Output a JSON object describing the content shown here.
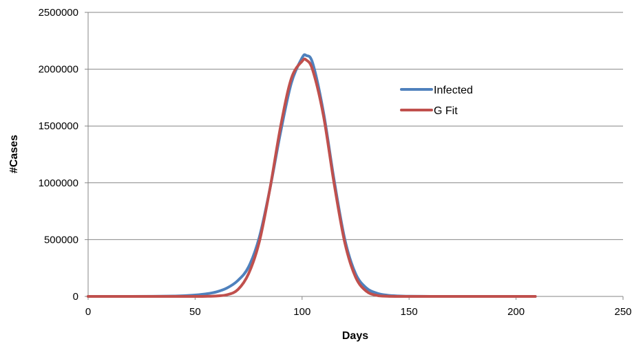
{
  "chart_data": {
    "type": "line",
    "title": "",
    "xlabel": "Days",
    "ylabel": "#Cases",
    "xlim": [
      0,
      250
    ],
    "ylim": [
      0,
      2500000
    ],
    "x_ticks": [
      0,
      50,
      100,
      150,
      200,
      250
    ],
    "y_ticks": [
      0,
      500000,
      1000000,
      1500000,
      2000000,
      2500000
    ],
    "x_tick_labels": [
      "0",
      "50",
      "100",
      "150",
      "200",
      "250"
    ],
    "y_tick_labels": [
      "0",
      "500000",
      "1000000",
      "1500000",
      "2000000",
      "2500000"
    ],
    "grid": "horizontal",
    "legend_position": "right-upper-middle",
    "series": [
      {
        "name": "Infected",
        "color": "#4f81bd",
        "x": [
          0,
          10,
          20,
          30,
          40,
          45,
          50,
          55,
          60,
          65,
          70,
          75,
          80,
          85,
          90,
          95,
          100,
          102,
          105,
          110,
          115,
          120,
          125,
          130,
          135,
          140,
          145,
          150,
          160,
          170,
          180,
          190,
          200,
          209
        ],
        "y": [
          0,
          0,
          0,
          1000,
          3000,
          6000,
          12000,
          22000,
          40000,
          75000,
          140000,
          260000,
          520000,
          950000,
          1450000,
          1880000,
          2100000,
          2120000,
          2050000,
          1620000,
          1020000,
          500000,
          200000,
          75000,
          28000,
          10000,
          4000,
          1500,
          300,
          50,
          10,
          0,
          0,
          0
        ]
      },
      {
        "name": "G Fit",
        "color": "#c0504d",
        "x": [
          0,
          10,
          20,
          30,
          40,
          45,
          50,
          55,
          60,
          65,
          70,
          75,
          80,
          85,
          90,
          95,
          100,
          102,
          105,
          110,
          115,
          120,
          125,
          130,
          135,
          140,
          145,
          150,
          160,
          170,
          180,
          190,
          200,
          209
        ],
        "y": [
          0,
          0,
          0,
          0,
          0,
          0,
          200,
          1000,
          4000,
          15000,
          60000,
          200000,
          480000,
          950000,
          1500000,
          1920000,
          2070000,
          2080000,
          1990000,
          1590000,
          990000,
          470000,
          170000,
          46000,
          9000,
          1500,
          200,
          0,
          0,
          0,
          0,
          0,
          0,
          0
        ]
      }
    ]
  }
}
